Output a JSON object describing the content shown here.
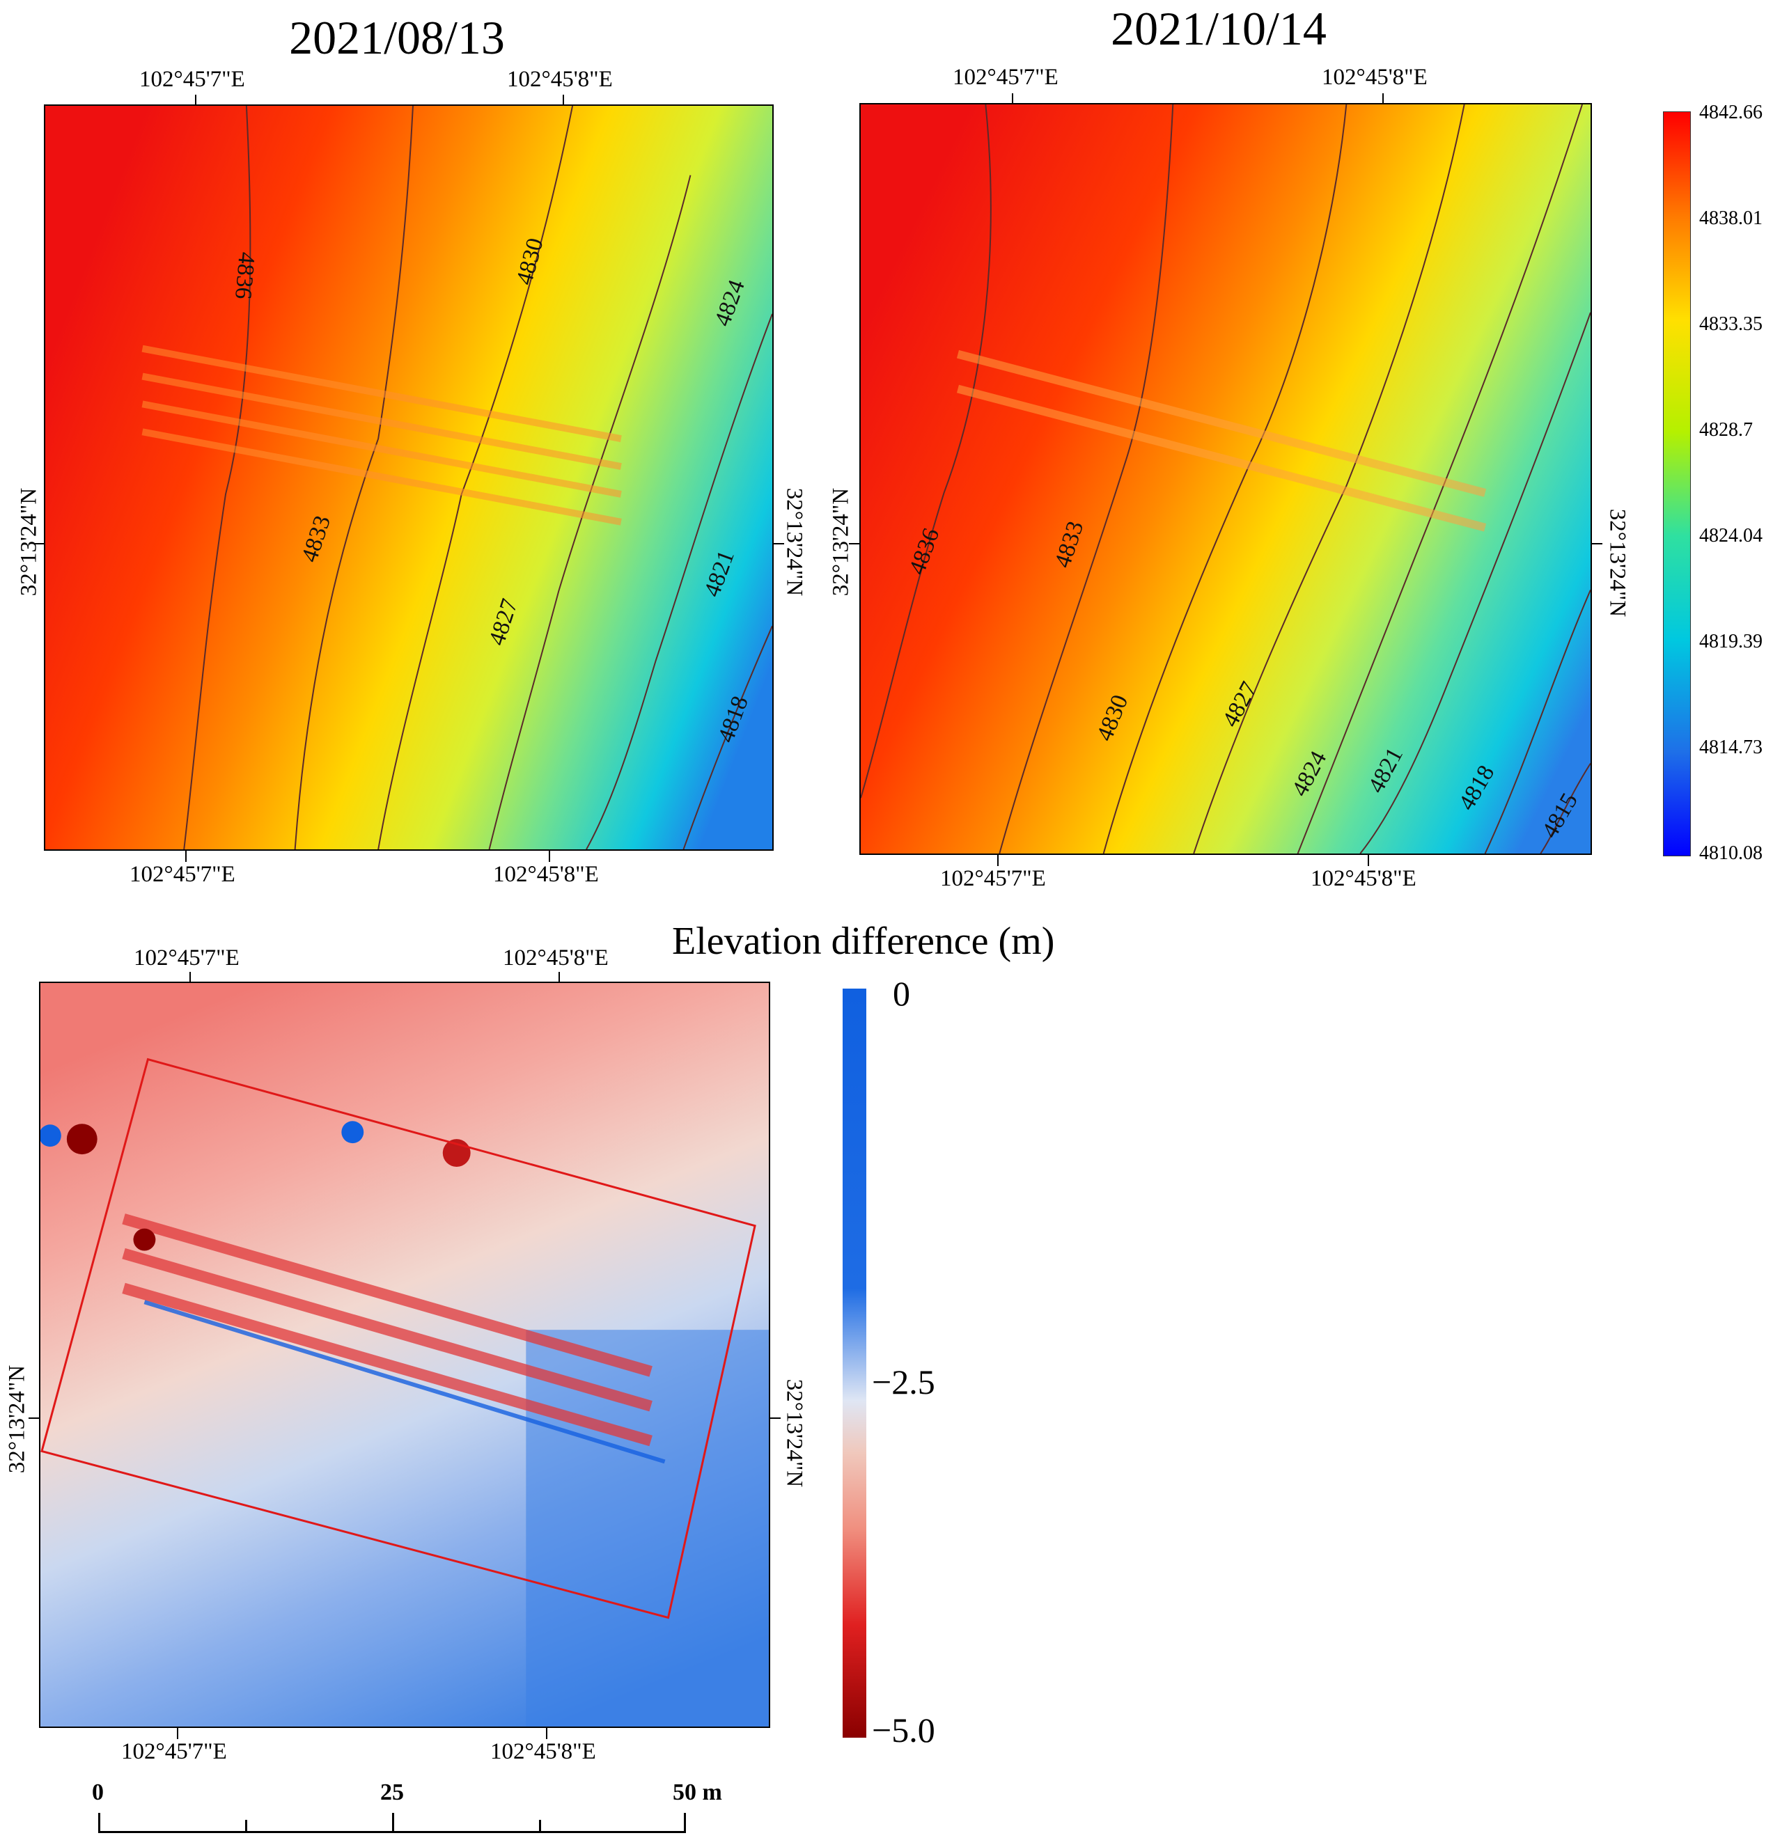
{
  "panels": [
    {
      "id": "panel-a",
      "title": "2021/08/13",
      "top_lon_labels": [
        "102°45'7\"E",
        "102°45'8\"E"
      ],
      "bottom_lon_labels": [
        "102°45'7\"E",
        "102°45'8\"E"
      ],
      "lat_label_left": "32°13'24\"N",
      "lat_label_right": "32°13'24\"N",
      "contour_labels": [
        "4836",
        "4830",
        "4824",
        "4833",
        "4827",
        "4821",
        "4818"
      ]
    },
    {
      "id": "panel-b",
      "title": "2021/10/14",
      "top_lon_labels": [
        "102°45'7\"E",
        "102°45'8\"E"
      ],
      "bottom_lon_labels": [
        "102°45'7\"E",
        "102°45'8\"E"
      ],
      "lat_label_left": "32°13'24\"N",
      "lat_label_right": "32°13'24\"N",
      "contour_labels": [
        "4836",
        "4833",
        "4830",
        "4827",
        "4824",
        "4821",
        "4818",
        "4815"
      ]
    }
  ],
  "elevation_colorbar": {
    "ticks": [
      "4842.66",
      "4838.01",
      "4833.35",
      "4828.7",
      "4824.04",
      "4819.39",
      "4814.73",
      "4810.08"
    ],
    "min": 4810.08,
    "max": 4842.66,
    "colors": [
      "#ff0000",
      "#ff7a00",
      "#ffe000",
      "#b5f000",
      "#2fe0a0",
      "#00c8e0",
      "#1e70e8",
      "#0000ff"
    ]
  },
  "difference_panel": {
    "title": "Elevation difference (m)",
    "top_lon_labels": [
      "102°45'7\"E",
      "102°45'8\"E"
    ],
    "bottom_lon_labels": [
      "102°45'7\"E",
      "102°45'8\"E"
    ],
    "lat_label_left": "32°13'24\"N",
    "lat_label_right": "32°13'24\"N",
    "colorbar_ticks": [
      "0",
      "−2.5",
      "−5.0"
    ],
    "colors": [
      "#1060e0",
      "#dfe6f4",
      "#f0b0a0",
      "#e02020",
      "#8a0000"
    ]
  },
  "scale_bar": {
    "labels": [
      "0",
      "25",
      "50 m"
    ]
  }
}
